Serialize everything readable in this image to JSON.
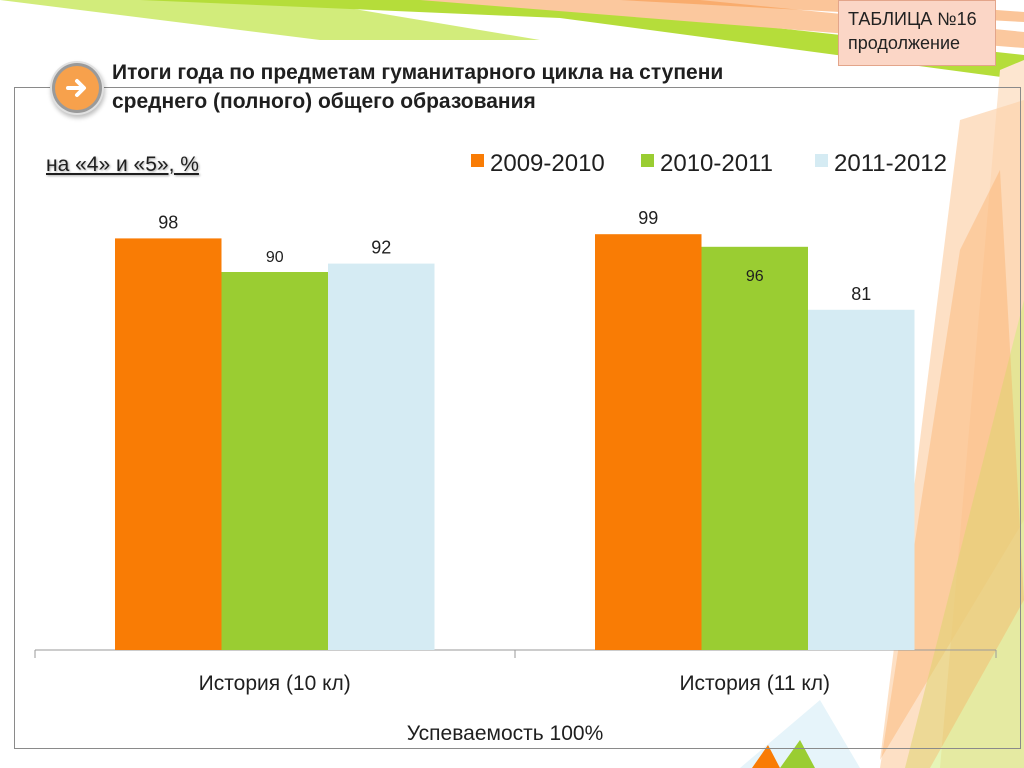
{
  "badge": {
    "line1": "ТАБЛИЦА №16",
    "line2": "продолжение"
  },
  "title": {
    "line1": "Итоги года по предметам гуманитарного цикла на ступени",
    "line2": "среднего (полного) общего образования"
  },
  "subtitle": "на «4» и «5», %",
  "footer": "Успеваемость 100%",
  "nav_icon": "arrow-right-icon",
  "colors": {
    "series_2009": "#f97c05",
    "series_2010": "#9acd32",
    "series_2011": "#d5ebf3",
    "decor_orange": "#fbc89e",
    "decor_green": "#d2ec7b"
  },
  "chart_data": {
    "type": "bar",
    "categories": [
      "История (10 кл)",
      "История (11 кл)"
    ],
    "series": [
      {
        "name": "2009-2010",
        "values": [
          98,
          99
        ],
        "color": "#f97c05"
      },
      {
        "name": "2010-2011",
        "values": [
          90,
          96
        ],
        "color": "#9acd32"
      },
      {
        "name": "2011-2012",
        "values": [
          92,
          81
        ],
        "color": "#d5ebf3"
      }
    ],
    "ylim": [
      0,
      100
    ],
    "xlabel": "",
    "ylabel": "",
    "grid": false,
    "legend": "top-right",
    "data_labels": true
  }
}
